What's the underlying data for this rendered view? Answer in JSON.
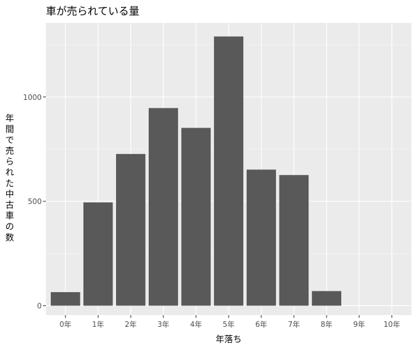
{
  "chart_data": {
    "type": "bar",
    "title": "車が売られている量",
    "xlabel": "年落ち",
    "ylabel": "年間で売られた中古車の数",
    "categories": [
      "0年",
      "1年",
      "2年",
      "3年",
      "4年",
      "5年",
      "6年",
      "7年",
      "8年",
      "9年",
      "10年"
    ],
    "values": [
      65,
      495,
      727,
      947,
      852,
      1290,
      652,
      626,
      70,
      0,
      0
    ],
    "ylim": [
      -45,
      1355
    ],
    "yticks": [
      0,
      500,
      1000
    ],
    "grid": true,
    "legend": "none",
    "colors": {
      "bar": "#595959",
      "panel_background": "#ebebeb",
      "grid_major": "#ffffff",
      "grid_minor": "#f5f5f5",
      "tick_text": "#4d4d4d",
      "tick_mark": "#333333"
    }
  }
}
